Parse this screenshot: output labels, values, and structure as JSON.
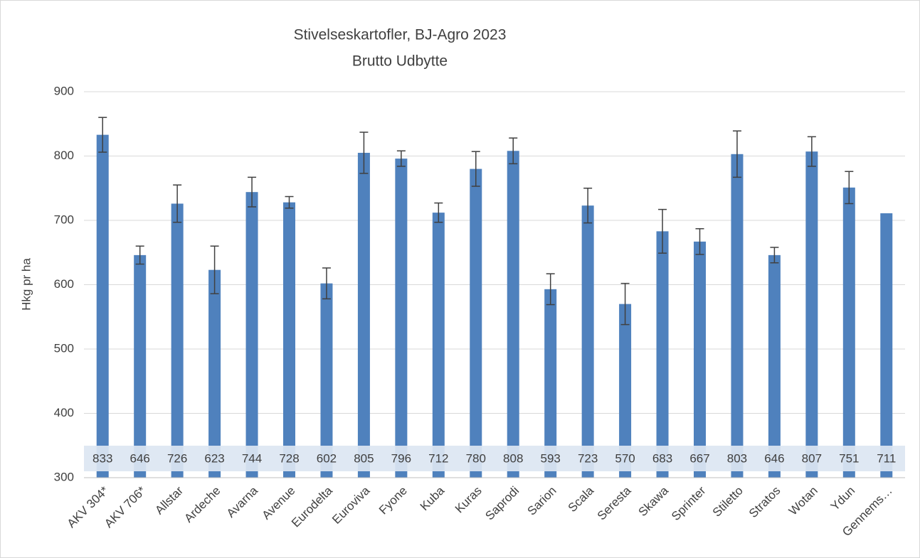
{
  "chart_data": {
    "type": "bar",
    "title": "Stivelseskartofler, BJ-Agro 2023",
    "subtitle": "Brutto Udbytte",
    "y_label": "Hkg pr ha",
    "categories": [
      "AKV 304*",
      "AKV 706*",
      "Allstar",
      "Ardeche",
      "Avarna",
      "Avenue",
      "Eurodelta",
      "Euroviva",
      "Fyone",
      "Kuba",
      "Kuras",
      "Saprodi",
      "Sarion",
      "Scala",
      "Seresta",
      "Skawa",
      "Sprinter",
      "Stiletto",
      "Stratos",
      "Wotan",
      "Ydun",
      "Gennems…"
    ],
    "values": [
      833,
      646,
      726,
      623,
      744,
      728,
      602,
      805,
      796,
      712,
      780,
      808,
      593,
      723,
      570,
      683,
      667,
      803,
      646,
      807,
      751,
      711
    ],
    "errors": [
      27,
      14,
      29,
      37,
      23,
      9,
      24,
      32,
      12,
      15,
      27,
      20,
      24,
      27,
      32,
      34,
      20,
      36,
      12,
      23,
      25,
      null
    ],
    "color": "#4f81bd",
    "ylim": [
      300,
      900
    ],
    "yticks": [
      300,
      400,
      500,
      600,
      700,
      800,
      900
    ],
    "grid": true
  }
}
